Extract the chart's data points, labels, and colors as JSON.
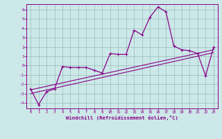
{
  "xlabel": "Windchill (Refroidissement éolien,°C)",
  "background_color": "#cce8e8",
  "line_color": "#880088",
  "grid_color": "#99bbbb",
  "xlim": [
    -0.5,
    23.5
  ],
  "ylim": [
    -4.6,
    6.6
  ],
  "xticks": [
    0,
    1,
    2,
    3,
    4,
    5,
    6,
    7,
    8,
    9,
    10,
    11,
    12,
    13,
    14,
    15,
    16,
    17,
    18,
    19,
    20,
    21,
    22,
    23
  ],
  "yticks": [
    -4,
    -3,
    -2,
    -1,
    0,
    1,
    2,
    3,
    4,
    5,
    6
  ],
  "main_x": [
    0,
    1,
    2,
    3,
    4,
    5,
    6,
    7,
    8,
    9,
    10,
    11,
    12,
    13,
    14,
    15,
    16,
    17,
    18,
    19,
    20,
    21,
    22,
    23
  ],
  "main_y": [
    -2.5,
    -4.2,
    -2.8,
    -2.5,
    -0.1,
    -0.2,
    -0.2,
    -0.2,
    -0.5,
    -0.8,
    1.3,
    1.2,
    1.2,
    3.8,
    3.3,
    5.2,
    6.3,
    5.8,
    2.1,
    1.7,
    1.6,
    1.3,
    -1.1,
    2.0
  ],
  "line1_x": [
    0,
    23
  ],
  "line1_y": [
    -3.0,
    1.4
  ],
  "line2_x": [
    0,
    23
  ],
  "line2_y": [
    -2.6,
    1.7
  ]
}
